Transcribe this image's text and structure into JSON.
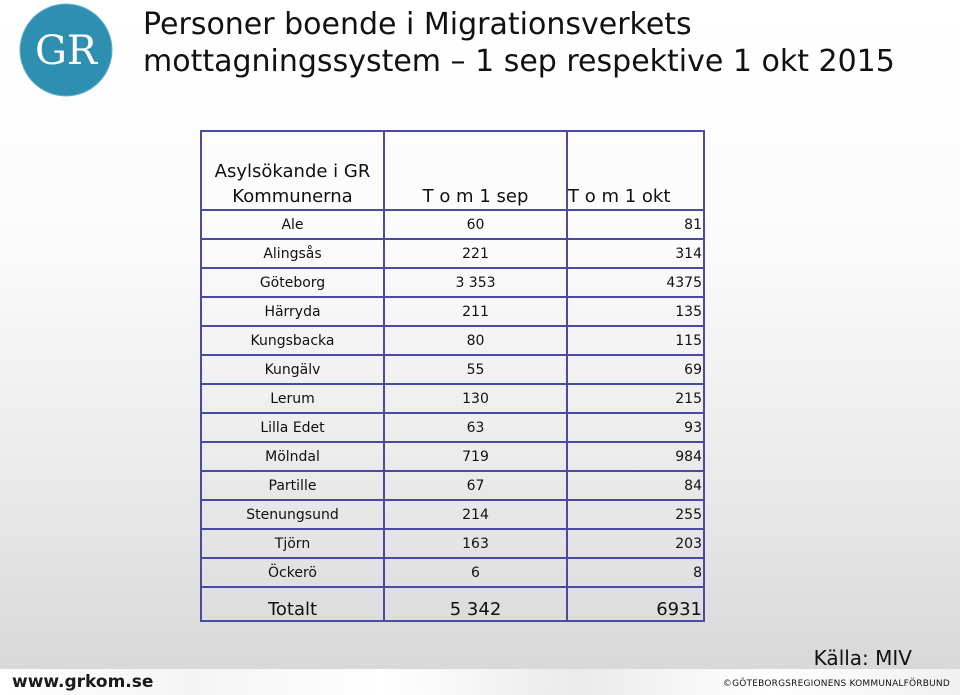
{
  "header": {
    "logo_text": "GR",
    "title": "Personer boende i Migrationsverkets mottagningssystem – 1 sep respektive 1 okt 2015"
  },
  "table": {
    "columns": [
      "Asylsökande i GR Kommunerna",
      "T o m 1 sep",
      "T o m 1 okt"
    ],
    "rows": [
      {
        "kommun": "Ale",
        "sep": "60",
        "okt": "81"
      },
      {
        "kommun": "Alingsås",
        "sep": "221",
        "okt": "314"
      },
      {
        "kommun": "Göteborg",
        "sep": "3 353",
        "okt": "4375"
      },
      {
        "kommun": "Härryda",
        "sep": "211",
        "okt": "135"
      },
      {
        "kommun": "Kungsbacka",
        "sep": "80",
        "okt": "115"
      },
      {
        "kommun": "Kungälv",
        "sep": "55",
        "okt": "69"
      },
      {
        "kommun": "Lerum",
        "sep": "130",
        "okt": "215"
      },
      {
        "kommun": "Lilla Edet",
        "sep": "63",
        "okt": "93"
      },
      {
        "kommun": "Mölndal",
        "sep": "719",
        "okt": "984"
      },
      {
        "kommun": "Partille",
        "sep": "67",
        "okt": "84"
      },
      {
        "kommun": "Stenungsund",
        "sep": "214",
        "okt": "255"
      },
      {
        "kommun": "Tjörn",
        "sep": "163",
        "okt": "203"
      },
      {
        "kommun": "Öckerö",
        "sep": "6",
        "okt": "8"
      }
    ],
    "total": {
      "label": "Totalt",
      "sep": "5 342",
      "okt": "6931"
    }
  },
  "source": "Källa: MIV",
  "footer": {
    "website": "www.grkom.se",
    "organization": "©GÖTEBORGSREGIONENS KOMMUNALFÖRBUND"
  },
  "colors": {
    "logo_blue": "#2f8fb0",
    "table_border": "#4a4aa0"
  }
}
